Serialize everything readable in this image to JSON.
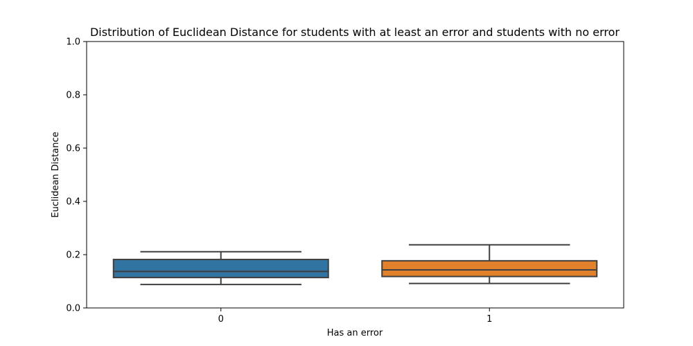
{
  "chart_data": {
    "type": "boxplot",
    "title": "Distribution of Euclidean Distance for students with at least an error and students with no error",
    "xlabel": "Has an error",
    "ylabel": "Euclidean Distance",
    "ylim": [
      0,
      1
    ],
    "yticks": [
      "0.0",
      "0.2",
      "0.4",
      "0.6",
      "0.8",
      "1.0"
    ],
    "categories": [
      "0",
      "1"
    ],
    "boxes": [
      {
        "category": "0",
        "whisker_low": 0.088,
        "q1": 0.114,
        "median": 0.137,
        "q3": 0.182,
        "whisker_high": 0.211,
        "color": "#3274a1"
      },
      {
        "category": "1",
        "whisker_low": 0.092,
        "q1": 0.118,
        "median": 0.143,
        "q3": 0.177,
        "whisker_high": 0.237,
        "color": "#e1812c"
      }
    ],
    "grid": false,
    "legend": "none"
  }
}
